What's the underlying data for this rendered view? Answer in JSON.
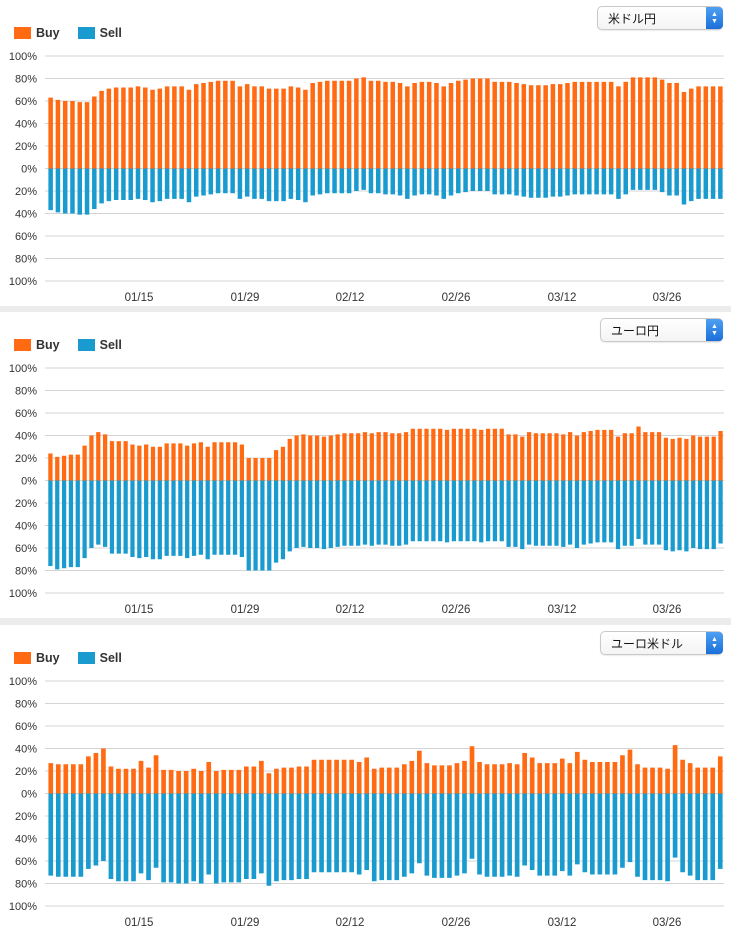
{
  "legend": {
    "buy_label": "Buy",
    "sell_label": "Sell",
    "buy_color": "#ff6a13",
    "sell_color": "#1a9bcf"
  },
  "panels": [
    {
      "selector_value": "米ドル円"
    },
    {
      "selector_value": "ユーロ円"
    },
    {
      "selector_value": "ユーロ米ドル"
    }
  ],
  "chart_data": [
    {
      "type": "bar",
      "title": "米ドル円",
      "y_tick_labels": [
        "100%",
        "80%",
        "60%",
        "40%",
        "20%",
        "0%",
        "20%",
        "40%",
        "60%",
        "80%",
        "100%"
      ],
      "x_tick_labels": [
        "01/15",
        "01/29",
        "02/12",
        "02/26",
        "03/12",
        "03/26"
      ],
      "ylim": [
        -100,
        100
      ],
      "grid": true,
      "legend": "top-left",
      "series": [
        {
          "name": "Buy",
          "values": [
            63,
            61,
            60,
            60,
            59,
            59,
            64,
            69,
            71,
            72,
            72,
            72,
            73,
            72,
            70,
            71,
            73,
            73,
            73,
            70,
            75,
            76,
            77,
            78,
            78,
            78,
            73,
            75,
            73,
            73,
            71,
            71,
            71,
            73,
            72,
            70,
            76,
            77,
            78,
            78,
            78,
            78,
            80,
            81,
            78,
            78,
            77,
            77,
            76,
            73,
            76,
            77,
            77,
            76,
            73,
            76,
            78,
            79,
            80,
            80,
            80,
            77,
            77,
            77,
            76,
            75,
            74,
            74,
            74,
            75,
            75,
            76,
            77,
            77,
            77,
            77,
            77,
            77,
            73,
            77,
            81,
            81,
            81,
            81,
            79,
            76,
            76,
            68,
            71,
            73,
            73,
            73,
            73
          ]
        },
        {
          "name": "Sell",
          "values": [
            37,
            39,
            40,
            40,
            41,
            41,
            36,
            31,
            29,
            28,
            28,
            28,
            27,
            28,
            30,
            29,
            27,
            27,
            27,
            30,
            25,
            24,
            23,
            22,
            22,
            22,
            27,
            25,
            27,
            27,
            29,
            29,
            29,
            27,
            28,
            30,
            24,
            23,
            22,
            22,
            22,
            22,
            20,
            19,
            22,
            22,
            23,
            23,
            24,
            27,
            24,
            23,
            23,
            24,
            27,
            24,
            22,
            21,
            20,
            20,
            20,
            23,
            23,
            23,
            24,
            25,
            26,
            26,
            26,
            25,
            25,
            24,
            23,
            23,
            23,
            23,
            23,
            23,
            27,
            23,
            19,
            19,
            19,
            19,
            21,
            24,
            24,
            32,
            29,
            27,
            27,
            27,
            27
          ]
        }
      ]
    },
    {
      "type": "bar",
      "title": "ユーロ円",
      "y_tick_labels": [
        "100%",
        "80%",
        "60%",
        "40%",
        "20%",
        "0%",
        "20%",
        "40%",
        "60%",
        "80%",
        "100%"
      ],
      "x_tick_labels": [
        "01/15",
        "01/29",
        "02/12",
        "02/26",
        "03/12",
        "03/26"
      ],
      "ylim": [
        -100,
        100
      ],
      "grid": true,
      "legend": "top-left",
      "series": [
        {
          "name": "Buy",
          "values": [
            24,
            21,
            22,
            23,
            23,
            31,
            40,
            43,
            41,
            35,
            35,
            35,
            32,
            31,
            32,
            30,
            30,
            33,
            33,
            33,
            31,
            33,
            34,
            30,
            34,
            34,
            34,
            34,
            32,
            20,
            20,
            20,
            20,
            27,
            30,
            37,
            40,
            41,
            40,
            40,
            39,
            40,
            41,
            42,
            42,
            42,
            43,
            42,
            43,
            43,
            42,
            42,
            43,
            46,
            46,
            46,
            46,
            46,
            45,
            46,
            46,
            46,
            46,
            45,
            46,
            46,
            46,
            41,
            41,
            39,
            43,
            42,
            42,
            42,
            42,
            41,
            43,
            40,
            43,
            44,
            45,
            45,
            45,
            39,
            42,
            42,
            48,
            43,
            43,
            43,
            38,
            37,
            38,
            37,
            40,
            39,
            39,
            39,
            44
          ]
        },
        {
          "name": "Sell",
          "values": [
            76,
            79,
            78,
            77,
            77,
            69,
            60,
            57,
            59,
            65,
            65,
            65,
            68,
            69,
            68,
            70,
            70,
            67,
            67,
            67,
            69,
            67,
            66,
            70,
            66,
            66,
            66,
            66,
            68,
            80,
            80,
            80,
            80,
            73,
            70,
            63,
            60,
            59,
            60,
            60,
            61,
            60,
            59,
            58,
            58,
            58,
            57,
            58,
            57,
            57,
            58,
            58,
            57,
            54,
            54,
            54,
            54,
            54,
            55,
            54,
            54,
            54,
            54,
            55,
            54,
            54,
            54,
            59,
            59,
            61,
            57,
            58,
            58,
            58,
            58,
            59,
            57,
            60,
            57,
            56,
            55,
            55,
            55,
            61,
            58,
            58,
            52,
            57,
            57,
            57,
            62,
            63,
            62,
            63,
            60,
            61,
            61,
            61,
            56
          ]
        }
      ]
    },
    {
      "type": "bar",
      "title": "ユーロ米ドル",
      "y_tick_labels": [
        "100%",
        "80%",
        "60%",
        "40%",
        "20%",
        "0%",
        "20%",
        "40%",
        "60%",
        "80%",
        "100%"
      ],
      "x_tick_labels": [
        "01/15",
        "01/29",
        "02/12",
        "02/26",
        "03/12",
        "03/26"
      ],
      "ylim": [
        -100,
        100
      ],
      "grid": true,
      "legend": "top-left",
      "series": [
        {
          "name": "Buy",
          "values": [
            27,
            26,
            26,
            26,
            26,
            33,
            36,
            40,
            24,
            22,
            22,
            22,
            29,
            23,
            34,
            21,
            21,
            20,
            20,
            22,
            20,
            28,
            20,
            21,
            21,
            21,
            24,
            24,
            29,
            18,
            22,
            23,
            23,
            24,
            24,
            30,
            30,
            30,
            30,
            30,
            30,
            28,
            32,
            22,
            23,
            23,
            23,
            26,
            29,
            38,
            27,
            25,
            25,
            25,
            27,
            29,
            42,
            28,
            26,
            26,
            26,
            27,
            26,
            36,
            32,
            27,
            27,
            27,
            31,
            27,
            37,
            30,
            28,
            28,
            28,
            28,
            34,
            39,
            26,
            23,
            23,
            23,
            22,
            43,
            30,
            27,
            23,
            23,
            23,
            33
          ]
        },
        {
          "name": "Sell",
          "values": [
            73,
            74,
            74,
            74,
            74,
            67,
            64,
            60,
            76,
            78,
            78,
            78,
            71,
            77,
            66,
            79,
            79,
            80,
            80,
            78,
            80,
            72,
            80,
            79,
            79,
            79,
            76,
            76,
            71,
            82,
            78,
            77,
            77,
            76,
            76,
            70,
            70,
            70,
            70,
            70,
            70,
            72,
            68,
            78,
            77,
            77,
            77,
            74,
            71,
            62,
            73,
            75,
            75,
            75,
            73,
            71,
            58,
            72,
            74,
            74,
            74,
            73,
            74,
            64,
            68,
            73,
            73,
            73,
            69,
            73,
            63,
            70,
            72,
            72,
            72,
            72,
            66,
            61,
            74,
            77,
            77,
            77,
            78,
            57,
            70,
            73,
            77,
            77,
            77,
            67
          ]
        }
      ]
    }
  ]
}
